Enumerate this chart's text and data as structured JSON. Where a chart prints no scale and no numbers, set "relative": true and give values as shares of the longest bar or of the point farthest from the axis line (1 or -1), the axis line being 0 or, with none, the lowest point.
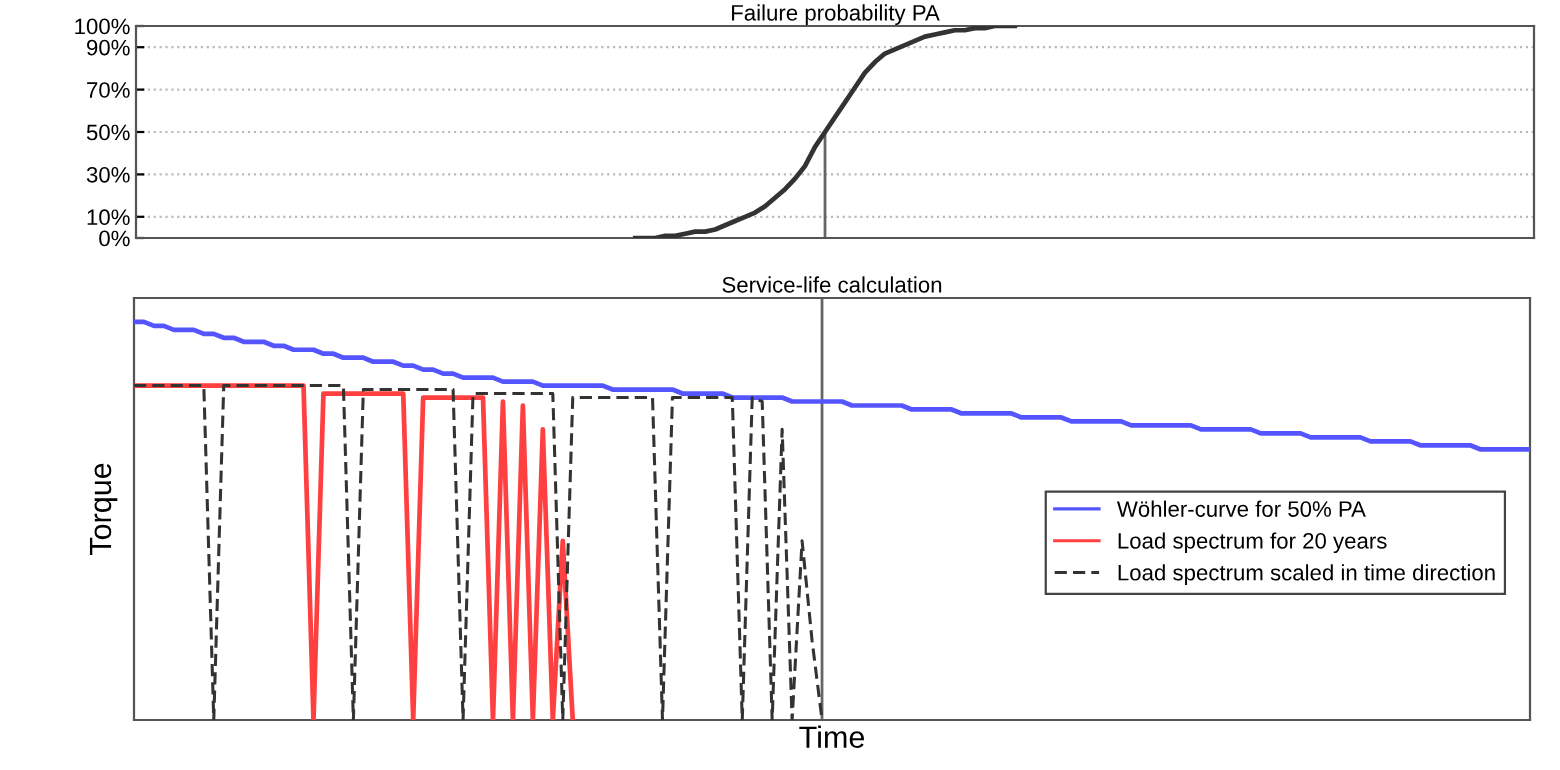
{
  "chart_data": [
    {
      "type": "line",
      "title": "Failure probability PA",
      "categories": [
        null,
        null,
        null,
        null,
        null,
        null,
        null,
        null,
        null,
        null,
        null,
        null,
        null,
        null,
        null,
        null,
        null,
        null,
        null,
        null,
        null,
        null,
        null,
        null,
        null,
        null,
        null,
        null,
        null,
        null,
        null,
        null,
        null,
        null,
        null,
        null,
        null,
        null,
        null,
        null,
        null,
        null,
        null,
        null,
        null,
        null,
        null,
        null,
        null,
        null,
        null,
        null,
        null,
        null,
        null,
        null,
        null,
        null,
        null,
        null,
        null,
        null,
        null,
        null,
        null,
        null,
        null,
        null,
        null,
        null,
        null,
        null,
        null,
        null,
        null,
        null,
        null,
        null,
        null,
        null,
        null,
        null,
        null,
        null,
        null,
        null,
        null,
        null,
        null,
        null,
        null,
        null,
        null,
        null,
        null,
        null,
        null,
        null,
        null,
        null,
        null,
        null,
        null,
        null,
        null,
        null,
        null,
        null,
        null,
        null,
        null,
        null,
        null,
        null,
        null,
        null,
        null,
        null,
        null,
        null,
        null,
        null,
        null,
        null,
        null,
        null,
        null,
        null,
        null,
        null,
        null,
        null,
        null,
        null,
        null,
        null,
        null,
        null,
        null,
        null,
        null
      ],
      "ylim": [
        0,
        100
      ],
      "yticks": [
        {
          "value": 0,
          "label": "0%"
        },
        {
          "value": 10,
          "label": "10%"
        },
        {
          "value": 30,
          "label": "30%"
        },
        {
          "value": 50,
          "label": "50%"
        },
        {
          "value": 70,
          "label": "70%"
        },
        {
          "value": 90,
          "label": "90%"
        },
        {
          "value": 100,
          "label": "100%"
        }
      ],
      "tick_labels": "y",
      "grid": "y",
      "series": [
        {
          "color": "#333333",
          "values": [
            null,
            null,
            null,
            null,
            null,
            null,
            null,
            null,
            null,
            null,
            null,
            null,
            null,
            null,
            null,
            null,
            null,
            null,
            null,
            null,
            null,
            null,
            null,
            null,
            null,
            null,
            null,
            null,
            null,
            null,
            null,
            null,
            null,
            null,
            null,
            null,
            null,
            null,
            null,
            null,
            null,
            null,
            null,
            null,
            null,
            null,
            null,
            null,
            null,
            null,
            0,
            0,
            0,
            1,
            1,
            2,
            3,
            3,
            4,
            6,
            8,
            10,
            12,
            15,
            19,
            23,
            28,
            34,
            43,
            50,
            57,
            64,
            71,
            78,
            83,
            87,
            89,
            91,
            93,
            95,
            96,
            97,
            98,
            98,
            99,
            99,
            100,
            100,
            100,
            null,
            null,
            null,
            null,
            null,
            null,
            null,
            null,
            null,
            null,
            null,
            null,
            null,
            null,
            null,
            null,
            null,
            null,
            null,
            null,
            null,
            null,
            null,
            null,
            null,
            null,
            null,
            null,
            null,
            null,
            null,
            null,
            null,
            null,
            null,
            null,
            null,
            null,
            null,
            null,
            null,
            null,
            null,
            null,
            null,
            null,
            null,
            null,
            null,
            null,
            null,
            null
          ]
        }
      ]
    },
    {
      "type": "line",
      "title": "Service-life calculation",
      "xlabel": "Time",
      "ylabel": "Torque",
      "relative": true,
      "categories": [
        null,
        null,
        null,
        null,
        null,
        null,
        null,
        null,
        null,
        null,
        null,
        null,
        null,
        null,
        null,
        null,
        null,
        null,
        null,
        null,
        null,
        null,
        null,
        null,
        null,
        null,
        null,
        null,
        null,
        null,
        null,
        null,
        null,
        null,
        null,
        null,
        null,
        null,
        null,
        null,
        null,
        null,
        null,
        null,
        null,
        null,
        null,
        null,
        null,
        null,
        null,
        null,
        null,
        null,
        null,
        null,
        null,
        null,
        null,
        null,
        null,
        null,
        null,
        null,
        null,
        null,
        null,
        null,
        null,
        null,
        null,
        null,
        null,
        null,
        null,
        null,
        null,
        null,
        null,
        null,
        null,
        null,
        null,
        null,
        null,
        null,
        null,
        null,
        null,
        null,
        null,
        null,
        null,
        null,
        null,
        null,
        null,
        null,
        null,
        null,
        null,
        null,
        null,
        null,
        null,
        null,
        null,
        null,
        null,
        null,
        null,
        null,
        null,
        null,
        null,
        null,
        null,
        null,
        null,
        null,
        null,
        null,
        null,
        null,
        null,
        null,
        null,
        null,
        null,
        null,
        null,
        null,
        null,
        null,
        null,
        null,
        null,
        null,
        null,
        null,
        null
      ],
      "tick_labels": false,
      "legend": "right",
      "series": [
        {
          "name": "Wöhler-curve for 50% PA",
          "color": "#5555ff",
          "values": [
            1.0,
            1.0,
            0.99,
            0.99,
            0.98,
            0.98,
            0.98,
            0.97,
            0.97,
            0.96,
            0.96,
            0.95,
            0.95,
            0.95,
            0.94,
            0.94,
            0.93,
            0.93,
            0.93,
            0.92,
            0.92,
            0.91,
            0.91,
            0.91,
            0.9,
            0.9,
            0.9,
            0.89,
            0.89,
            0.88,
            0.88,
            0.87,
            0.87,
            0.86,
            0.86,
            0.86,
            0.86,
            0.85,
            0.85,
            0.85,
            0.85,
            0.84,
            0.84,
            0.84,
            0.84,
            0.84,
            0.84,
            0.84,
            0.83,
            0.83,
            0.83,
            0.83,
            0.83,
            0.83,
            0.83,
            0.82,
            0.82,
            0.82,
            0.82,
            0.82,
            0.81,
            0.81,
            0.81,
            0.81,
            0.81,
            0.81,
            0.8,
            0.8,
            0.8,
            0.8,
            0.8,
            0.8,
            0.79,
            0.79,
            0.79,
            0.79,
            0.79,
            0.79,
            0.78,
            0.78,
            0.78,
            0.78,
            0.78,
            0.77,
            0.77,
            0.77,
            0.77,
            0.77,
            0.77,
            0.76,
            0.76,
            0.76,
            0.76,
            0.76,
            0.75,
            0.75,
            0.75,
            0.75,
            0.75,
            0.75,
            0.74,
            0.74,
            0.74,
            0.74,
            0.74,
            0.74,
            0.74,
            0.73,
            0.73,
            0.73,
            0.73,
            0.73,
            0.73,
            0.72,
            0.72,
            0.72,
            0.72,
            0.72,
            0.71,
            0.71,
            0.71,
            0.71,
            0.71,
            0.71,
            0.7,
            0.7,
            0.7,
            0.7,
            0.7,
            0.69,
            0.69,
            0.69,
            0.69,
            0.69,
            0.69,
            0.68,
            0.68,
            0.68,
            0.68,
            0.68,
            0.68
          ]
        },
        {
          "name": "Load spectrum for 20 years",
          "color": "#ff4040",
          "values": [
            0.84,
            0.84,
            0.84,
            0.84,
            0.84,
            0.84,
            0.84,
            0.84,
            0.84,
            0.84,
            0.84,
            0.84,
            0.84,
            0.84,
            0.84,
            0.84,
            0.84,
            0.84,
            0,
            0.82,
            0.82,
            0.82,
            0.82,
            0.82,
            0.82,
            0.82,
            0.82,
            0.82,
            0,
            0.81,
            0.81,
            0.81,
            0.81,
            0.81,
            0.81,
            0.81,
            0,
            0.8,
            0,
            0.79,
            0,
            0.73,
            0,
            0.45,
            0,
            null,
            null,
            null,
            null,
            null,
            null,
            null,
            null,
            null,
            null,
            null,
            null,
            null,
            null,
            null,
            null,
            null,
            null,
            null,
            null,
            null,
            null,
            null,
            null,
            null,
            null,
            null,
            null,
            null,
            null,
            null,
            null,
            null,
            null,
            null,
            null,
            null,
            null,
            null,
            null,
            null,
            null,
            null,
            null,
            null,
            null,
            null,
            null,
            null,
            null,
            null,
            null,
            null,
            null,
            null,
            null,
            null,
            null,
            null,
            null,
            null,
            null,
            null,
            null,
            null,
            null,
            null,
            null,
            null,
            null,
            null,
            null,
            null,
            null,
            null,
            null,
            null,
            null,
            null,
            null,
            null,
            null,
            null,
            null,
            null,
            null,
            null,
            null,
            null,
            null,
            null,
            null,
            null,
            null,
            null,
            null
          ]
        },
        {
          "name": "Load spectrum scaled in time direction",
          "color": "#333333",
          "line_style": "dashed",
          "values": [
            0.84,
            0.84,
            0.84,
            0.84,
            0.84,
            0.84,
            0.84,
            0.84,
            0,
            0.84,
            0.84,
            0.84,
            0.84,
            0.84,
            0.84,
            0.84,
            0.84,
            0.84,
            0.84,
            0.84,
            0.84,
            0.84,
            0,
            0.83,
            0.83,
            0.83,
            0.83,
            0.83,
            0.83,
            0.83,
            0.83,
            0.83,
            0.83,
            0,
            0.82,
            0.82,
            0.82,
            0.82,
            0.82,
            0.82,
            0.82,
            0.82,
            0.82,
            0,
            0.81,
            0.81,
            0.81,
            0.81,
            0.81,
            0.81,
            0.81,
            0.81,
            0.81,
            0,
            0.81,
            0.81,
            0.81,
            0.81,
            0.81,
            0.81,
            0.81,
            0,
            0.81,
            0.8,
            0,
            0.73,
            0,
            0.45,
            0.2,
            0,
            null,
            null,
            null,
            null,
            null,
            null,
            null,
            null,
            null,
            null,
            null,
            null,
            null,
            null,
            null,
            null,
            null,
            null,
            null,
            null,
            null,
            null,
            null,
            null,
            null,
            null,
            null,
            null,
            null,
            null,
            null,
            null,
            null,
            null,
            null,
            null,
            null,
            null,
            null,
            null,
            null,
            null,
            null,
            null,
            null,
            null,
            null,
            null,
            null,
            null,
            null,
            null,
            null,
            null,
            null,
            null,
            null,
            null,
            null,
            null,
            null,
            null,
            null,
            null,
            null,
            null,
            null,
            null,
            null,
            null,
            null
          ]
        }
      ]
    }
  ]
}
